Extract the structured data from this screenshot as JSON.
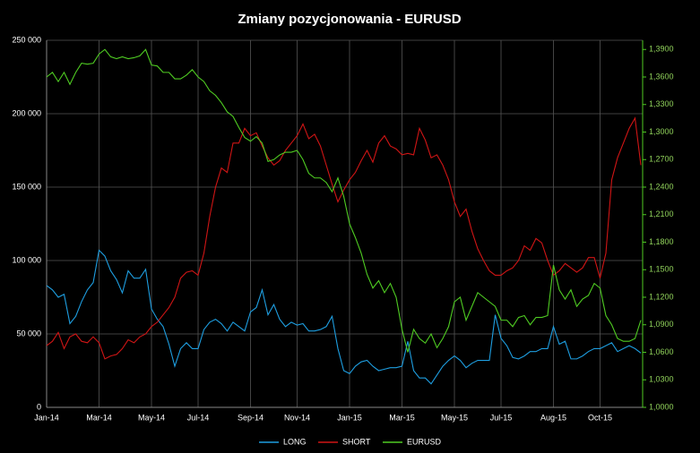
{
  "chart_data": {
    "type": "line",
    "title": "Zmiany pozycjonowania - EURUSD",
    "categories": [
      "Jan-14",
      null,
      null,
      null,
      null,
      null,
      null,
      null,
      null,
      "Mar-14",
      null,
      null,
      null,
      null,
      null,
      null,
      null,
      null,
      "May-14",
      null,
      null,
      null,
      null,
      null,
      null,
      null,
      "Jul-14",
      null,
      null,
      null,
      null,
      null,
      null,
      null,
      null,
      "Sep-14",
      null,
      null,
      null,
      null,
      null,
      null,
      null,
      "Nov-14",
      null,
      null,
      null,
      null,
      null,
      null,
      null,
      null,
      "Jan-15",
      null,
      null,
      null,
      null,
      null,
      null,
      null,
      null,
      "Mar-15",
      null,
      null,
      null,
      null,
      null,
      null,
      null,
      null,
      "May-15",
      null,
      null,
      null,
      null,
      null,
      null,
      null,
      "Jul-15",
      null,
      null,
      null,
      null,
      null,
      null,
      null,
      null,
      "Aug-15",
      null,
      null,
      null,
      null,
      null,
      null,
      null,
      "Oct-15",
      null,
      null,
      null,
      null,
      null,
      null,
      null
    ],
    "series": [
      {
        "name": "LONG",
        "color": "#1e9ee0",
        "values": [
          83000,
          80000,
          75000,
          77000,
          57000,
          62000,
          72000,
          80000,
          85000,
          107000,
          103000,
          93000,
          87000,
          78000,
          93000,
          88000,
          88000,
          94000,
          67000,
          60000,
          55000,
          43000,
          28000,
          40000,
          44000,
          40000,
          40000,
          53000,
          58000,
          60000,
          57000,
          52000,
          58000,
          55000,
          52000,
          65000,
          68000,
          80000,
          63000,
          70000,
          60000,
          55000,
          58000,
          56000,
          57000,
          52000,
          52000,
          53000,
          55000,
          62000,
          40000,
          25000,
          23000,
          28000,
          31000,
          32000,
          28000,
          25000,
          26000,
          27000,
          27000,
          28000,
          45000,
          25000,
          20000,
          20000,
          16000,
          22000,
          28000,
          32000,
          35000,
          32000,
          27000,
          30000,
          32000,
          32000,
          32000,
          63000,
          47000,
          42000,
          34000,
          33000,
          35000,
          38000,
          38000,
          40000,
          40000,
          55000,
          43000,
          45000,
          33000,
          33000,
          35000,
          38000,
          40000,
          40000,
          42000,
          44000,
          38000,
          40000,
          42000,
          40000,
          37000
        ]
      },
      {
        "name": "SHORT",
        "color": "#d01515",
        "values": [
          42000,
          45000,
          51000,
          40000,
          48000,
          50000,
          45000,
          44000,
          48000,
          44000,
          33000,
          35000,
          36000,
          40000,
          46000,
          44000,
          48000,
          50000,
          55000,
          58000,
          63000,
          68000,
          75000,
          88000,
          92000,
          93000,
          90000,
          105000,
          130000,
          150000,
          163000,
          160000,
          180000,
          180000,
          190000,
          185000,
          187000,
          178000,
          170000,
          165000,
          168000,
          175000,
          180000,
          185000,
          193000,
          183000,
          186000,
          178000,
          165000,
          152000,
          140000,
          148000,
          155000,
          160000,
          168000,
          175000,
          167000,
          180000,
          185000,
          178000,
          176000,
          172000,
          173000,
          172000,
          190000,
          182000,
          170000,
          172000,
          165000,
          155000,
          140000,
          130000,
          135000,
          120000,
          108000,
          100000,
          93000,
          90000,
          90000,
          93000,
          95000,
          100000,
          110000,
          107000,
          115000,
          112000,
          100000,
          90000,
          93000,
          98000,
          95000,
          92000,
          95000,
          102000,
          102000,
          88000,
          105000,
          155000,
          170000,
          180000,
          190000,
          197000,
          165000
        ]
      },
      {
        "name": "EURUSD",
        "color": "#4fcc22",
        "axis": "y2",
        "values": [
          1.36,
          1.365,
          1.355,
          1.365,
          1.352,
          1.365,
          1.375,
          1.374,
          1.375,
          1.385,
          1.39,
          1.382,
          1.38,
          1.382,
          1.38,
          1.381,
          1.383,
          1.39,
          1.373,
          1.372,
          1.365,
          1.365,
          1.358,
          1.358,
          1.362,
          1.368,
          1.36,
          1.355,
          1.345,
          1.34,
          1.332,
          1.322,
          1.317,
          1.305,
          1.294,
          1.29,
          1.295,
          1.288,
          1.268,
          1.27,
          1.275,
          1.278,
          1.278,
          1.28,
          1.27,
          1.255,
          1.25,
          1.25,
          1.245,
          1.235,
          1.25,
          1.23,
          1.2,
          1.185,
          1.168,
          1.145,
          1.13,
          1.138,
          1.125,
          1.135,
          1.12,
          1.085,
          1.06,
          1.085,
          1.075,
          1.07,
          1.08,
          1.065,
          1.075,
          1.088,
          1.115,
          1.12,
          1.095,
          1.11,
          1.125,
          1.12,
          1.115,
          1.11,
          1.095,
          1.095,
          1.088,
          1.098,
          1.1,
          1.09,
          1.098,
          1.098,
          1.1,
          1.155,
          1.128,
          1.118,
          1.128,
          1.11,
          1.118,
          1.122,
          1.135,
          1.13,
          1.1,
          1.09,
          1.075,
          1.072,
          1.072,
          1.075,
          1.095
        ]
      }
    ],
    "ylim": [
      0,
      250000
    ],
    "yticks": [
      0,
      {
        "value": 50000,
        "label": "50 000"
      },
      {
        "value": 100000,
        "label": "100 000"
      },
      {
        "value": 150000,
        "label": "150 000"
      },
      {
        "value": 200000,
        "label": "200 000"
      },
      {
        "value": 250000,
        "label": "250 000"
      }
    ],
    "y2lim": [
      1,
      1.4
    ],
    "y2ticks": [
      {
        "value": 1,
        "label": "1,0000"
      },
      {
        "value": 1.03,
        "label": "1,0300"
      },
      {
        "value": 1.06,
        "label": "1,0600"
      },
      {
        "value": 1.09,
        "label": "1,0900"
      },
      {
        "value": 1.12,
        "label": "1,1200"
      },
      {
        "value": 1.15,
        "label": "1,1500"
      },
      {
        "value": 1.18,
        "label": "1,1800"
      },
      {
        "value": 1.21,
        "label": "1,2100"
      },
      {
        "value": 1.24,
        "label": "1,2400"
      },
      {
        "value": 1.27,
        "label": "1,2700"
      },
      {
        "value": 1.3,
        "label": "1,3000"
      },
      {
        "value": 1.33,
        "label": "1,3300"
      },
      {
        "value": 1.36,
        "label": "1,3600"
      },
      {
        "value": 1.39,
        "label": "1,3900"
      }
    ],
    "grid": true,
    "legend": "bottom"
  }
}
